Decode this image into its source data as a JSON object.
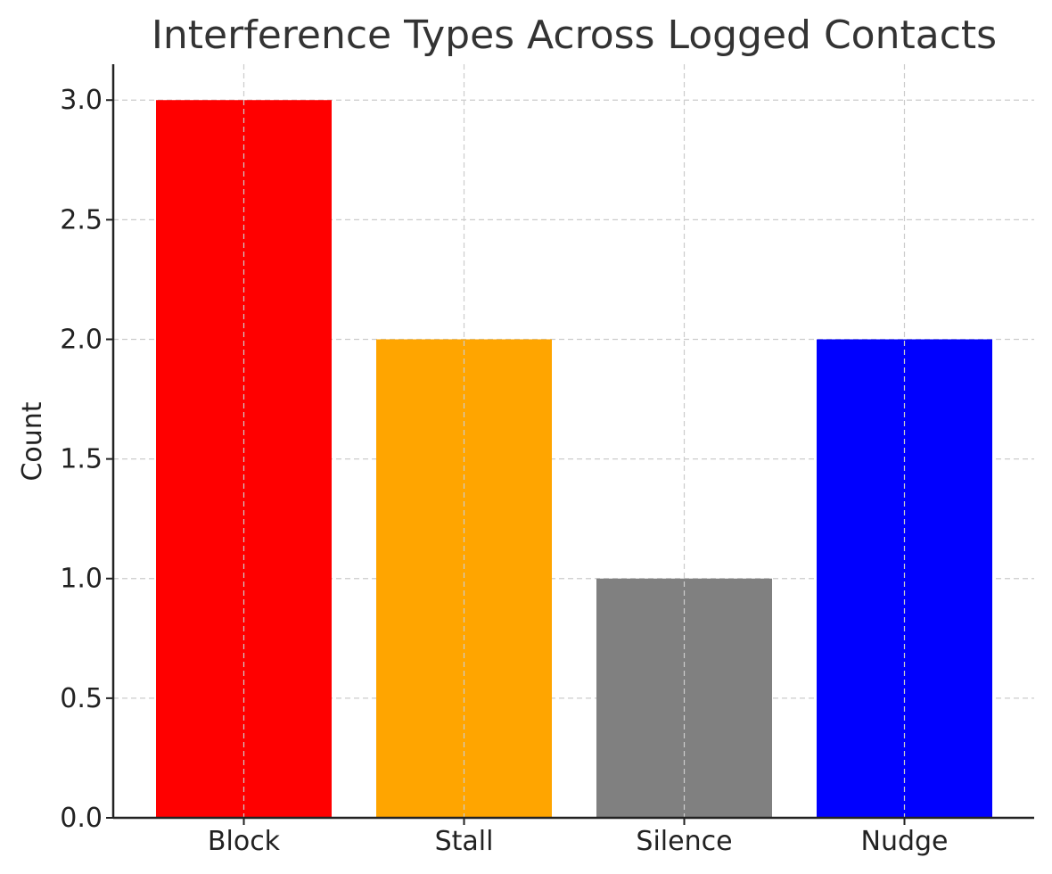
{
  "chart_data": {
    "type": "bar",
    "title": "Interference Types Across Logged Contacts",
    "xlabel": "",
    "ylabel": "Count",
    "categories": [
      "Block",
      "Stall",
      "Silence",
      "Nudge"
    ],
    "values": [
      3,
      2,
      1,
      2
    ],
    "colors": [
      "#ff0000",
      "#ffa500",
      "#808080",
      "#0000ff"
    ],
    "ylim": [
      0,
      3.15
    ],
    "yticks": [
      "0.0",
      "0.5",
      "1.0",
      "1.5",
      "2.0",
      "2.5",
      "3.0"
    ],
    "grid": true,
    "legend": "none"
  }
}
